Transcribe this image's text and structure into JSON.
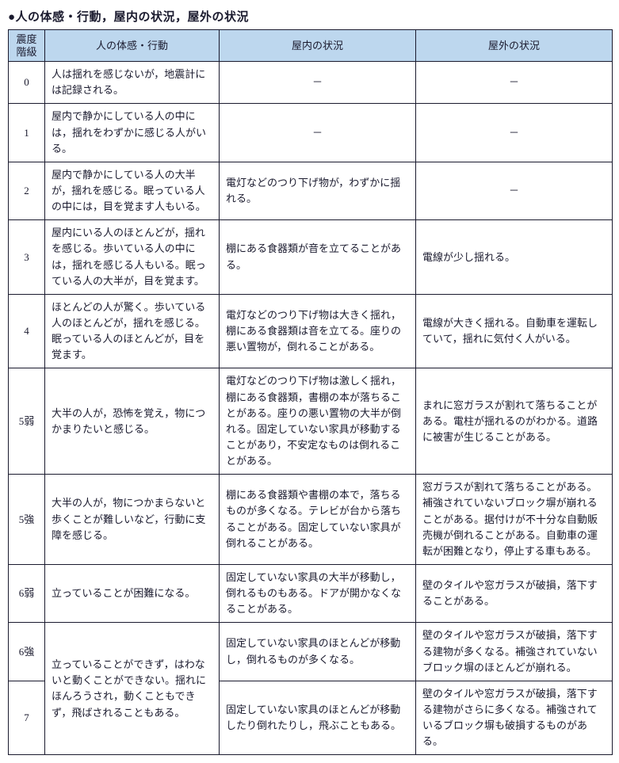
{
  "title": "●人の体感・行動，屋内の状況，屋外の状況",
  "headers": {
    "level": "震度\n階級",
    "human": "人の体感・行動",
    "indoor": "屋内の状況",
    "outdoor": "屋外の状況"
  },
  "rows": [
    {
      "level": "0",
      "human": "人は揺れを感じないが，地震計には記録される。",
      "indoor": "－",
      "outdoor": "－",
      "indoor_dash": true,
      "outdoor_dash": true
    },
    {
      "level": "1",
      "human": "屋内で静かにしている人の中には，揺れをわずかに感じる人がいる。",
      "indoor": "－",
      "outdoor": "－",
      "indoor_dash": true,
      "outdoor_dash": true
    },
    {
      "level": "2",
      "human": "屋内で静かにしている人の大半が，揺れを感じる。眠っている人の中には，目を覚ます人もいる。",
      "indoor": "電灯などのつり下げ物が，わずかに揺れる。",
      "outdoor": "－",
      "outdoor_dash": true
    },
    {
      "level": "3",
      "human": "屋内にいる人のほとんどが，揺れを感じる。歩いている人の中には，揺れを感じる人もいる。眠っている人の大半が，目を覚ます。",
      "indoor": "棚にある食器類が音を立てることがある。",
      "outdoor": "電線が少し揺れる。"
    },
    {
      "level": "4",
      "human": "ほとんどの人が驚く。歩いている人のほとんどが，揺れを感じる。眠っている人のほとんどが，目を覚ます。",
      "indoor": "電灯などのつり下げ物は大きく揺れ，棚にある食器類は音を立てる。座りの悪い置物が，倒れることがある。",
      "outdoor": "電線が大きく揺れる。自動車を運転していて，揺れに気付く人がいる。"
    },
    {
      "level": "5弱",
      "human": "大半の人が，恐怖を覚え，物につかまりたいと感じる。",
      "indoor": "電灯などのつり下げ物は激しく揺れ，棚にある食器類，書棚の本が落ちることがある。座りの悪い置物の大半が倒れる。固定していない家具が移動することがあり，不安定なものは倒れることがある。",
      "outdoor": "まれに窓ガラスが割れて落ちることがある。電柱が揺れるのがわかる。道路に被害が生じることがある。"
    },
    {
      "level": "5強",
      "human": "大半の人が，物につかまらないと歩くことが難しいなど，行動に支障を感じる。",
      "indoor": "棚にある食器類や書棚の本で，落ちるものが多くなる。テレビが台から落ちることがある。固定していない家具が倒れることがある。",
      "outdoor": "窓ガラスが割れて落ちることがある。補強されていないブロック塀が崩れることがある。据付けが不十分な自動販売機が倒れることがある。自動車の運転が困難となり，停止する車もある。"
    },
    {
      "level": "6弱",
      "human": "立っていることが困難になる。",
      "indoor": "固定していない家具の大半が移動し，倒れるものもある。ドアが開かなくなることがある。",
      "outdoor": "壁のタイルや窓ガラスが破損，落下することがある。"
    },
    {
      "level": "6強",
      "human_rowspan": 2,
      "human": "立っていることができず，はわないと動くことができない。揺れにほんろうされ，動くこともできず，飛ばされることもある。",
      "indoor": "固定していない家具のほとんどが移動し，倒れるものが多くなる。",
      "outdoor": "壁のタイルや窓ガラスが破損，落下する建物が多くなる。補強されていないブロック塀のほとんどが崩れる。"
    },
    {
      "level": "7",
      "human_skip": true,
      "indoor": "固定していない家具のほとんどが移動したり倒れたりし，飛ぶこともある。",
      "outdoor": "壁のタイルや窓ガラスが破損，落下する建物がさらに多くなる。補強されているブロック塀も破損するものがある。"
    }
  ]
}
